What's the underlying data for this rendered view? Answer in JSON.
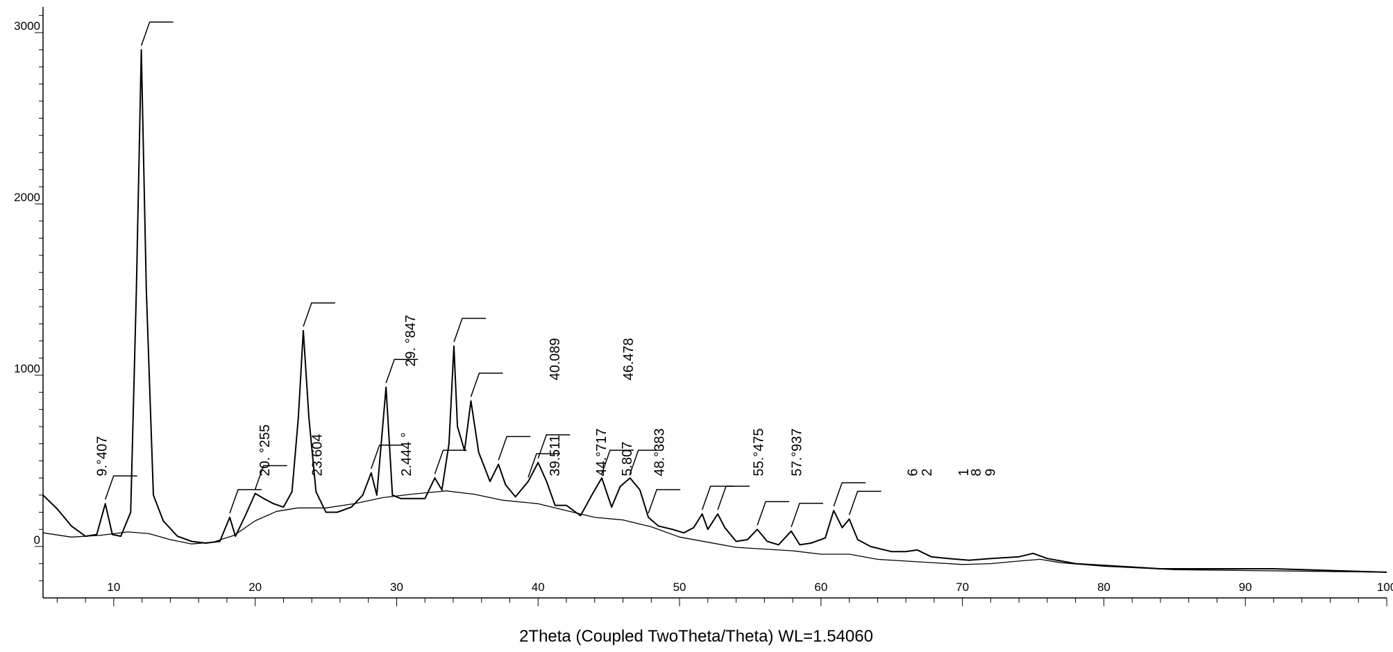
{
  "chart_data": {
    "type": "line",
    "title": "",
    "xlabel": "2Theta (Coupled TwoTheta/Theta) WL=1.54060",
    "ylabel": "",
    "xlim": [
      5,
      100
    ],
    "ylim": [
      -300,
      3150
    ],
    "x_ticks": [
      10,
      20,
      30,
      40,
      50,
      60,
      70,
      80,
      90,
      100
    ],
    "y_ticks": [
      0,
      1000,
      2000,
      3000
    ],
    "grid": false,
    "legend": "none",
    "series": [
      {
        "values": [
          [
            5,
            300
          ],
          [
            6,
            220
          ],
          [
            7,
            120
          ],
          [
            8,
            60
          ],
          [
            8.8,
            70
          ],
          [
            9.4,
            250
          ],
          [
            9.9,
            70
          ],
          [
            10.5,
            60
          ],
          [
            11.2,
            200
          ],
          [
            11.6,
            1500
          ],
          [
            11.95,
            2900
          ],
          [
            12.3,
            1500
          ],
          [
            12.8,
            300
          ],
          [
            13.5,
            150
          ],
          [
            14.5,
            60
          ],
          [
            15.5,
            30
          ],
          [
            16.5,
            20
          ],
          [
            17.5,
            30
          ],
          [
            18.2,
            170
          ],
          [
            18.6,
            60
          ],
          [
            19.3,
            180
          ],
          [
            20.0,
            310
          ],
          [
            20.6,
            280
          ],
          [
            21.3,
            250
          ],
          [
            22.0,
            230
          ],
          [
            22.6,
            320
          ],
          [
            23.05,
            750
          ],
          [
            23.4,
            1260
          ],
          [
            23.8,
            750
          ],
          [
            24.3,
            320
          ],
          [
            25.0,
            200
          ],
          [
            25.8,
            200
          ],
          [
            26.8,
            230
          ],
          [
            27.6,
            300
          ],
          [
            28.2,
            430
          ],
          [
            28.6,
            300
          ],
          [
            29.25,
            930
          ],
          [
            29.7,
            300
          ],
          [
            30.3,
            280
          ],
          [
            31.2,
            280
          ],
          [
            32.0,
            280
          ],
          [
            32.7,
            400
          ],
          [
            33.2,
            330
          ],
          [
            33.7,
            600
          ],
          [
            34.05,
            1170
          ],
          [
            34.3,
            700
          ],
          [
            34.8,
            560
          ],
          [
            35.25,
            850
          ],
          [
            35.8,
            550
          ],
          [
            36.6,
            380
          ],
          [
            37.2,
            480
          ],
          [
            37.7,
            360
          ],
          [
            38.4,
            290
          ],
          [
            39.3,
            380
          ],
          [
            40.0,
            490
          ],
          [
            40.6,
            380
          ],
          [
            41.2,
            240
          ],
          [
            42.0,
            240
          ],
          [
            43.0,
            180
          ],
          [
            43.8,
            300
          ],
          [
            44.5,
            400
          ],
          [
            45.2,
            230
          ],
          [
            45.8,
            350
          ],
          [
            46.5,
            400
          ],
          [
            47.2,
            330
          ],
          [
            47.8,
            170
          ],
          [
            48.5,
            120
          ],
          [
            49.5,
            100
          ],
          [
            50.3,
            80
          ],
          [
            51.0,
            110
          ],
          [
            51.6,
            190
          ],
          [
            52.0,
            100
          ],
          [
            52.7,
            190
          ],
          [
            53.2,
            110
          ],
          [
            54.0,
            30
          ],
          [
            54.8,
            40
          ],
          [
            55.5,
            100
          ],
          [
            56.2,
            30
          ],
          [
            57.0,
            10
          ],
          [
            57.9,
            90
          ],
          [
            58.5,
            10
          ],
          [
            59.3,
            20
          ],
          [
            60.3,
            50
          ],
          [
            60.9,
            210
          ],
          [
            61.5,
            110
          ],
          [
            62.0,
            160
          ],
          [
            62.6,
            40
          ],
          [
            63.5,
            0
          ],
          [
            65.0,
            -30
          ],
          [
            66.0,
            -30
          ],
          [
            66.8,
            -20
          ],
          [
            67.8,
            -60
          ],
          [
            69.0,
            -70
          ],
          [
            70.5,
            -80
          ],
          [
            72.0,
            -70
          ],
          [
            74.0,
            -60
          ],
          [
            75.0,
            -40
          ],
          [
            76.0,
            -70
          ],
          [
            78.0,
            -100
          ],
          [
            80.0,
            -110
          ],
          [
            84.0,
            -130
          ],
          [
            88.0,
            -130
          ],
          [
            92.0,
            -130
          ],
          [
            96.0,
            -140
          ],
          [
            100,
            -150
          ]
        ]
      },
      {
        "values": [
          [
            5,
            80
          ],
          [
            7,
            55
          ],
          [
            9,
            65
          ],
          [
            11,
            85
          ],
          [
            12.5,
            75
          ],
          [
            14,
            40
          ],
          [
            15.5,
            15
          ],
          [
            17,
            25
          ],
          [
            18.5,
            65
          ],
          [
            20,
            150
          ],
          [
            21.5,
            205
          ],
          [
            23,
            225
          ],
          [
            25,
            225
          ],
          [
            27,
            250
          ],
          [
            29,
            285
          ],
          [
            31,
            305
          ],
          [
            33.5,
            325
          ],
          [
            35.5,
            305
          ],
          [
            37.5,
            270
          ],
          [
            40,
            250
          ],
          [
            42,
            210
          ],
          [
            44,
            170
          ],
          [
            46,
            155
          ],
          [
            48,
            115
          ],
          [
            50,
            55
          ],
          [
            52,
            25
          ],
          [
            54,
            -5
          ],
          [
            56,
            -15
          ],
          [
            58,
            -25
          ],
          [
            60,
            -45
          ],
          [
            62,
            -45
          ],
          [
            64,
            -75
          ],
          [
            66,
            -85
          ],
          [
            68,
            -95
          ],
          [
            70,
            -105
          ],
          [
            72,
            -100
          ],
          [
            74,
            -85
          ],
          [
            75.5,
            -75
          ],
          [
            77,
            -95
          ],
          [
            80,
            -115
          ],
          [
            85,
            -135
          ],
          [
            90,
            -140
          ],
          [
            95,
            -145
          ],
          [
            100,
            -150
          ]
        ]
      }
    ],
    "peak_labels": [
      {
        "text": "9.°407",
        "x": 9.5,
        "y": 410
      },
      {
        "text": "20. °255",
        "x": 21.0,
        "y": 410
      },
      {
        "text": "23.604",
        "x": 24.7,
        "y": 410
      },
      {
        "text": "2.444 °",
        "x": 31.0,
        "y": 410
      },
      {
        "text": "29. °847",
        "x": 31.3,
        "y": 1050
      },
      {
        "text": "40.089",
        "x": 41.5,
        "y": 970
      },
      {
        "text": "39.511",
        "x": 41.5,
        "y": 410
      },
      {
        "text": "44.°717",
        "x": 44.8,
        "y": 410
      },
      {
        "text": "46.478",
        "x": 46.7,
        "y": 970
      },
      {
        "text": "5.807",
        "x": 46.6,
        "y": 410
      },
      {
        "text": "48.°383",
        "x": 48.9,
        "y": 410
      },
      {
        "text": "55.°475",
        "x": 55.9,
        "y": 410
      },
      {
        "text": "57.°937",
        "x": 58.6,
        "y": 410
      },
      {
        "text": "6",
        "x": 66.8,
        "y": 410
      },
      {
        "text": "2",
        "x": 67.8,
        "y": 410
      },
      {
        "text": "1",
        "x": 70.4,
        "y": 410
      },
      {
        "text": "8",
        "x": 71.3,
        "y": 410
      },
      {
        "text": "9",
        "x": 72.3,
        "y": 410
      }
    ],
    "peak_markers": [
      {
        "x": 9.4,
        "y": 250
      },
      {
        "x": 11.95,
        "y": 2900
      },
      {
        "x": 18.2,
        "y": 170
      },
      {
        "x": 20.0,
        "y": 310
      },
      {
        "x": 23.4,
        "y": 1260
      },
      {
        "x": 28.2,
        "y": 430
      },
      {
        "x": 29.25,
        "y": 930
      },
      {
        "x": 32.7,
        "y": 400
      },
      {
        "x": 34.05,
        "y": 1170
      },
      {
        "x": 35.25,
        "y": 850
      },
      {
        "x": 37.2,
        "y": 480
      },
      {
        "x": 39.3,
        "y": 380
      },
      {
        "x": 40.0,
        "y": 490
      },
      {
        "x": 44.5,
        "y": 400
      },
      {
        "x": 46.5,
        "y": 400
      },
      {
        "x": 47.8,
        "y": 170
      },
      {
        "x": 51.6,
        "y": 190
      },
      {
        "x": 52.7,
        "y": 190
      },
      {
        "x": 55.5,
        "y": 100
      },
      {
        "x": 57.9,
        "y": 90
      },
      {
        "x": 60.9,
        "y": 210
      },
      {
        "x": 62.0,
        "y": 160
      }
    ]
  }
}
